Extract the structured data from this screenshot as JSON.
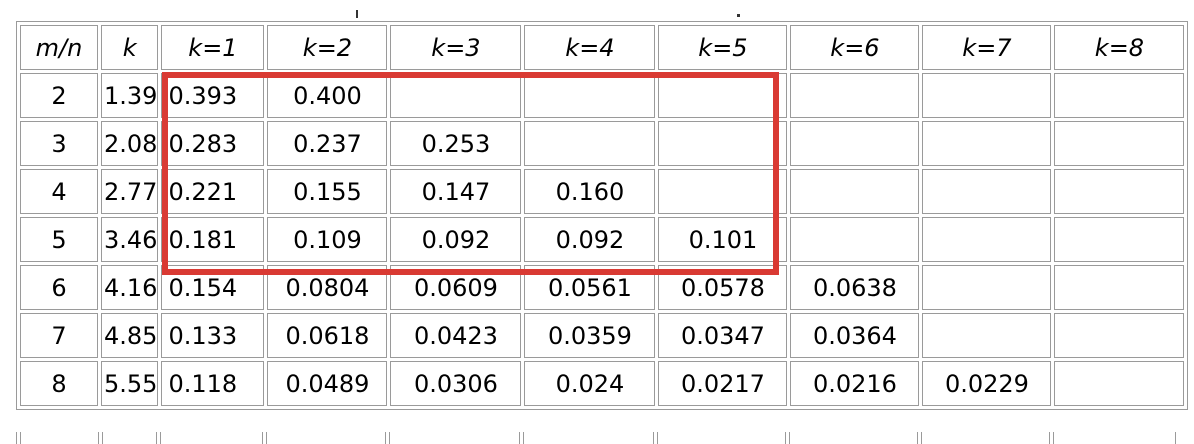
{
  "header": {
    "mn": "m/n",
    "k": "k",
    "k_cols": [
      "k=1",
      "k=2",
      "k=3",
      "k=4",
      "k=5",
      "k=6",
      "k=7",
      "k=8"
    ]
  },
  "rows": [
    {
      "mn": "2",
      "k": "1.39",
      "cells": [
        "0.393",
        "0.400",
        "",
        "",
        "",
        "",
        "",
        ""
      ]
    },
    {
      "mn": "3",
      "k": "2.08",
      "cells": [
        "0.283",
        "0.237",
        "0.253",
        "",
        "",
        "",
        "",
        ""
      ]
    },
    {
      "mn": "4",
      "k": "2.77",
      "cells": [
        "0.221",
        "0.155",
        "0.147",
        "0.160",
        "",
        "",
        "",
        ""
      ]
    },
    {
      "mn": "5",
      "k": "3.46",
      "cells": [
        "0.181",
        "0.109",
        "0.092",
        "0.092",
        "0.101",
        "",
        "",
        ""
      ]
    },
    {
      "mn": "6",
      "k": "4.16",
      "cells": [
        "0.154",
        "0.0804",
        "0.0609",
        "0.0561",
        "0.0578",
        "0.0638",
        "",
        ""
      ]
    },
    {
      "mn": "7",
      "k": "4.85",
      "cells": [
        "0.133",
        "0.0618",
        "0.0423",
        "0.0359",
        "0.0347",
        "0.0364",
        "",
        ""
      ]
    },
    {
      "mn": "8",
      "k": "5.55",
      "cells": [
        "0.118",
        "0.0489",
        "0.0306",
        "0.024",
        "0.0217",
        "0.0216",
        "0.0229",
        ""
      ]
    }
  ],
  "colors": {
    "highlight": "#d93a33",
    "border": "#9a9a9a"
  }
}
